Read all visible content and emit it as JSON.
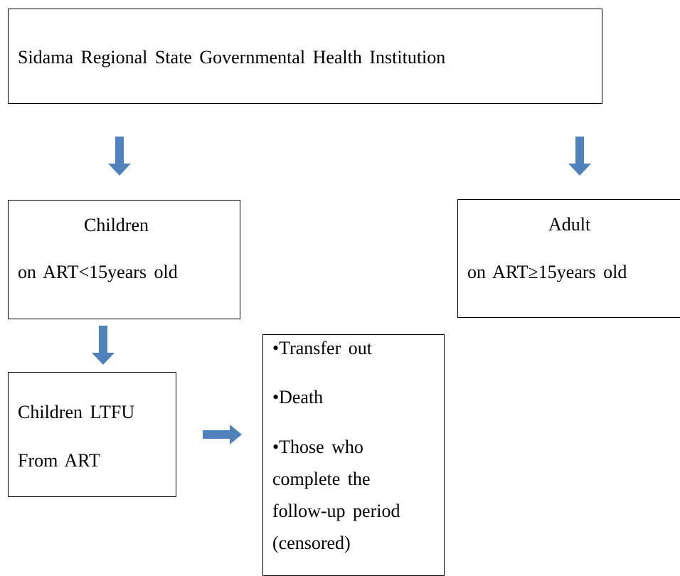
{
  "nodes": [
    {
      "label": "Sidama Regional State Governmental Health Institution"
    },
    {
      "label": "Children",
      "detail": "on ART<15years old"
    },
    {
      "label": "Adult",
      "detail": "on ART≥15years old"
    },
    {
      "label": "Children LTFU",
      "detail": "From ART"
    },
    {
      "items": [
        "•Transfer out",
        "•Death",
        "•Those who complete the follow-up period (censored)"
      ]
    }
  ]
}
